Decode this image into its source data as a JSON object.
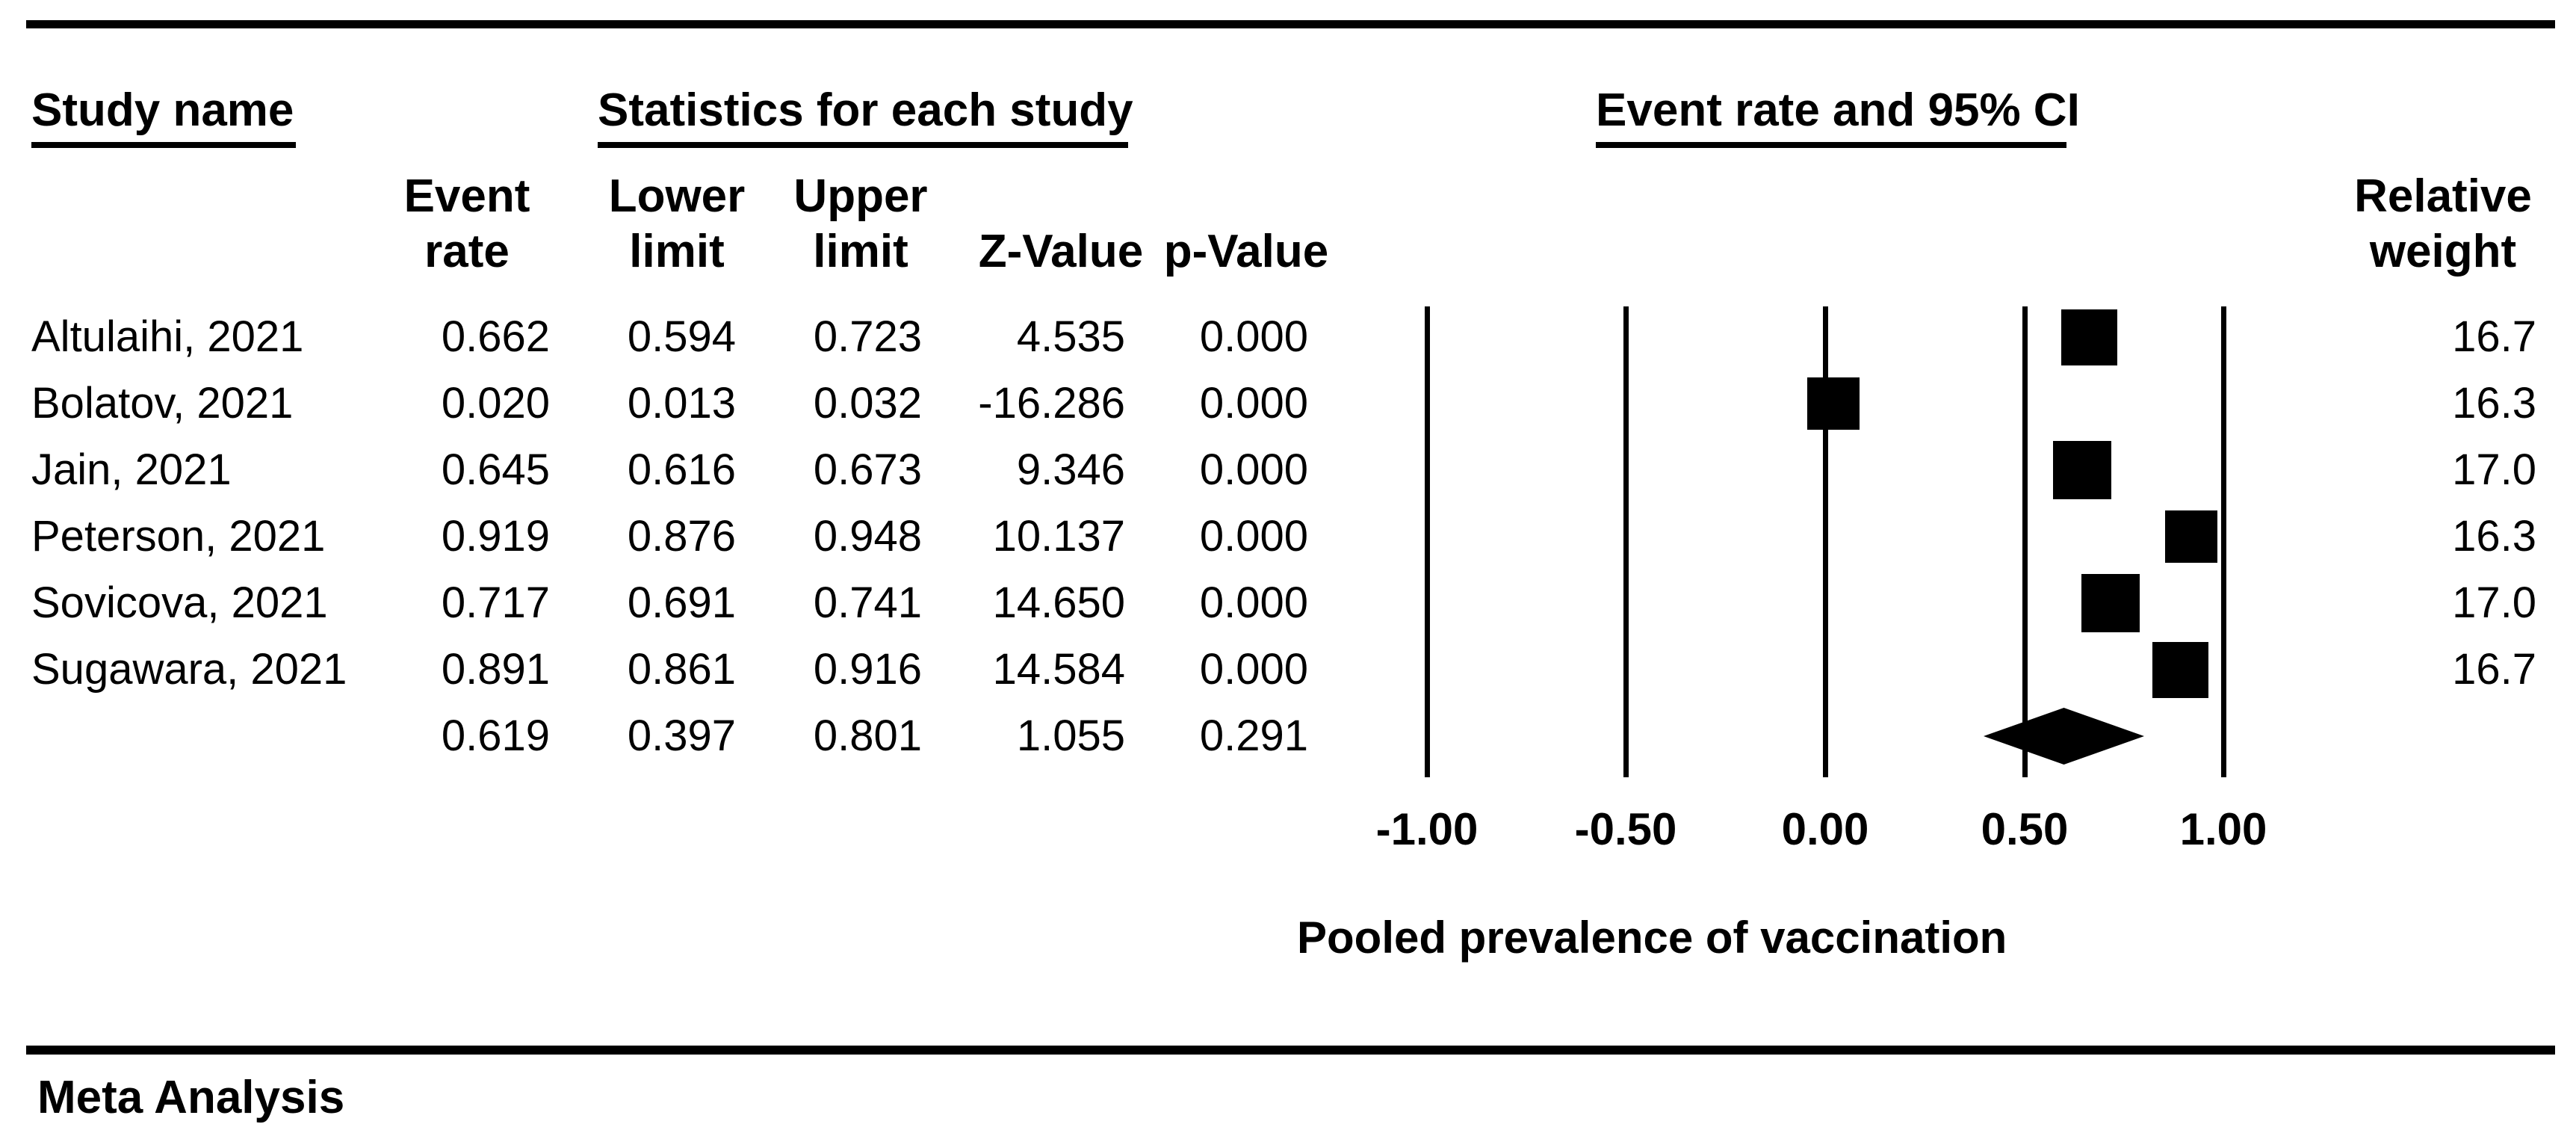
{
  "header": {
    "study_name": "Study name",
    "statistics": "Statistics for each study",
    "event_rate_ci": "Event rate and 95% CI",
    "columns": {
      "event_rate": [
        "Event",
        "rate"
      ],
      "lower_limit": [
        "Lower",
        "limit"
      ],
      "upper_limit": [
        "Upper",
        "limit"
      ],
      "z_value": "Z-Value",
      "p_value": "p-Value",
      "relative_weight": [
        "Relative",
        "weight"
      ]
    }
  },
  "chart_data": {
    "type": "forest",
    "studies": [
      {
        "name": "Altulaihi, 2021",
        "event_rate": "0.662",
        "lower_limit": "0.594",
        "upper_limit": "0.723",
        "z_value": "4.535",
        "p_value": "0.000",
        "relative_weight": "16.7"
      },
      {
        "name": "Bolatov, 2021",
        "event_rate": "0.020",
        "lower_limit": "0.013",
        "upper_limit": "0.032",
        "z_value": "-16.286",
        "p_value": "0.000",
        "relative_weight": "16.3"
      },
      {
        "name": "Jain, 2021",
        "event_rate": "0.645",
        "lower_limit": "0.616",
        "upper_limit": "0.673",
        "z_value": "9.346",
        "p_value": "0.000",
        "relative_weight": "17.0"
      },
      {
        "name": "Peterson, 2021",
        "event_rate": "0.919",
        "lower_limit": "0.876",
        "upper_limit": "0.948",
        "z_value": "10.137",
        "p_value": "0.000",
        "relative_weight": "16.3"
      },
      {
        "name": "Sovicova, 2021",
        "event_rate": "0.717",
        "lower_limit": "0.691",
        "upper_limit": "0.741",
        "z_value": "14.650",
        "p_value": "0.000",
        "relative_weight": "17.0"
      },
      {
        "name": "Sugawara, 2021",
        "event_rate": "0.891",
        "lower_limit": "0.861",
        "upper_limit": "0.916",
        "z_value": "14.584",
        "p_value": "0.000",
        "relative_weight": "16.7"
      }
    ],
    "pooled": {
      "event_rate": "0.619",
      "lower_limit": "0.397",
      "upper_limit": "0.801",
      "z_value": "1.055",
      "p_value": "0.291"
    },
    "axis": {
      "tick_values": [
        -1.0,
        -0.5,
        0.0,
        0.5,
        1.0
      ],
      "tick_labels": [
        "-1.00",
        "-0.50",
        "0.00",
        "0.50",
        "1.00"
      ],
      "xlim": [
        -1.0,
        1.0
      ],
      "grid": true
    },
    "xlabel": "Pooled prevalence of vaccination",
    "colors": {
      "foreground": "#000000",
      "background": "#ffffff"
    }
  },
  "footer": {
    "label": "Meta Analysis"
  }
}
